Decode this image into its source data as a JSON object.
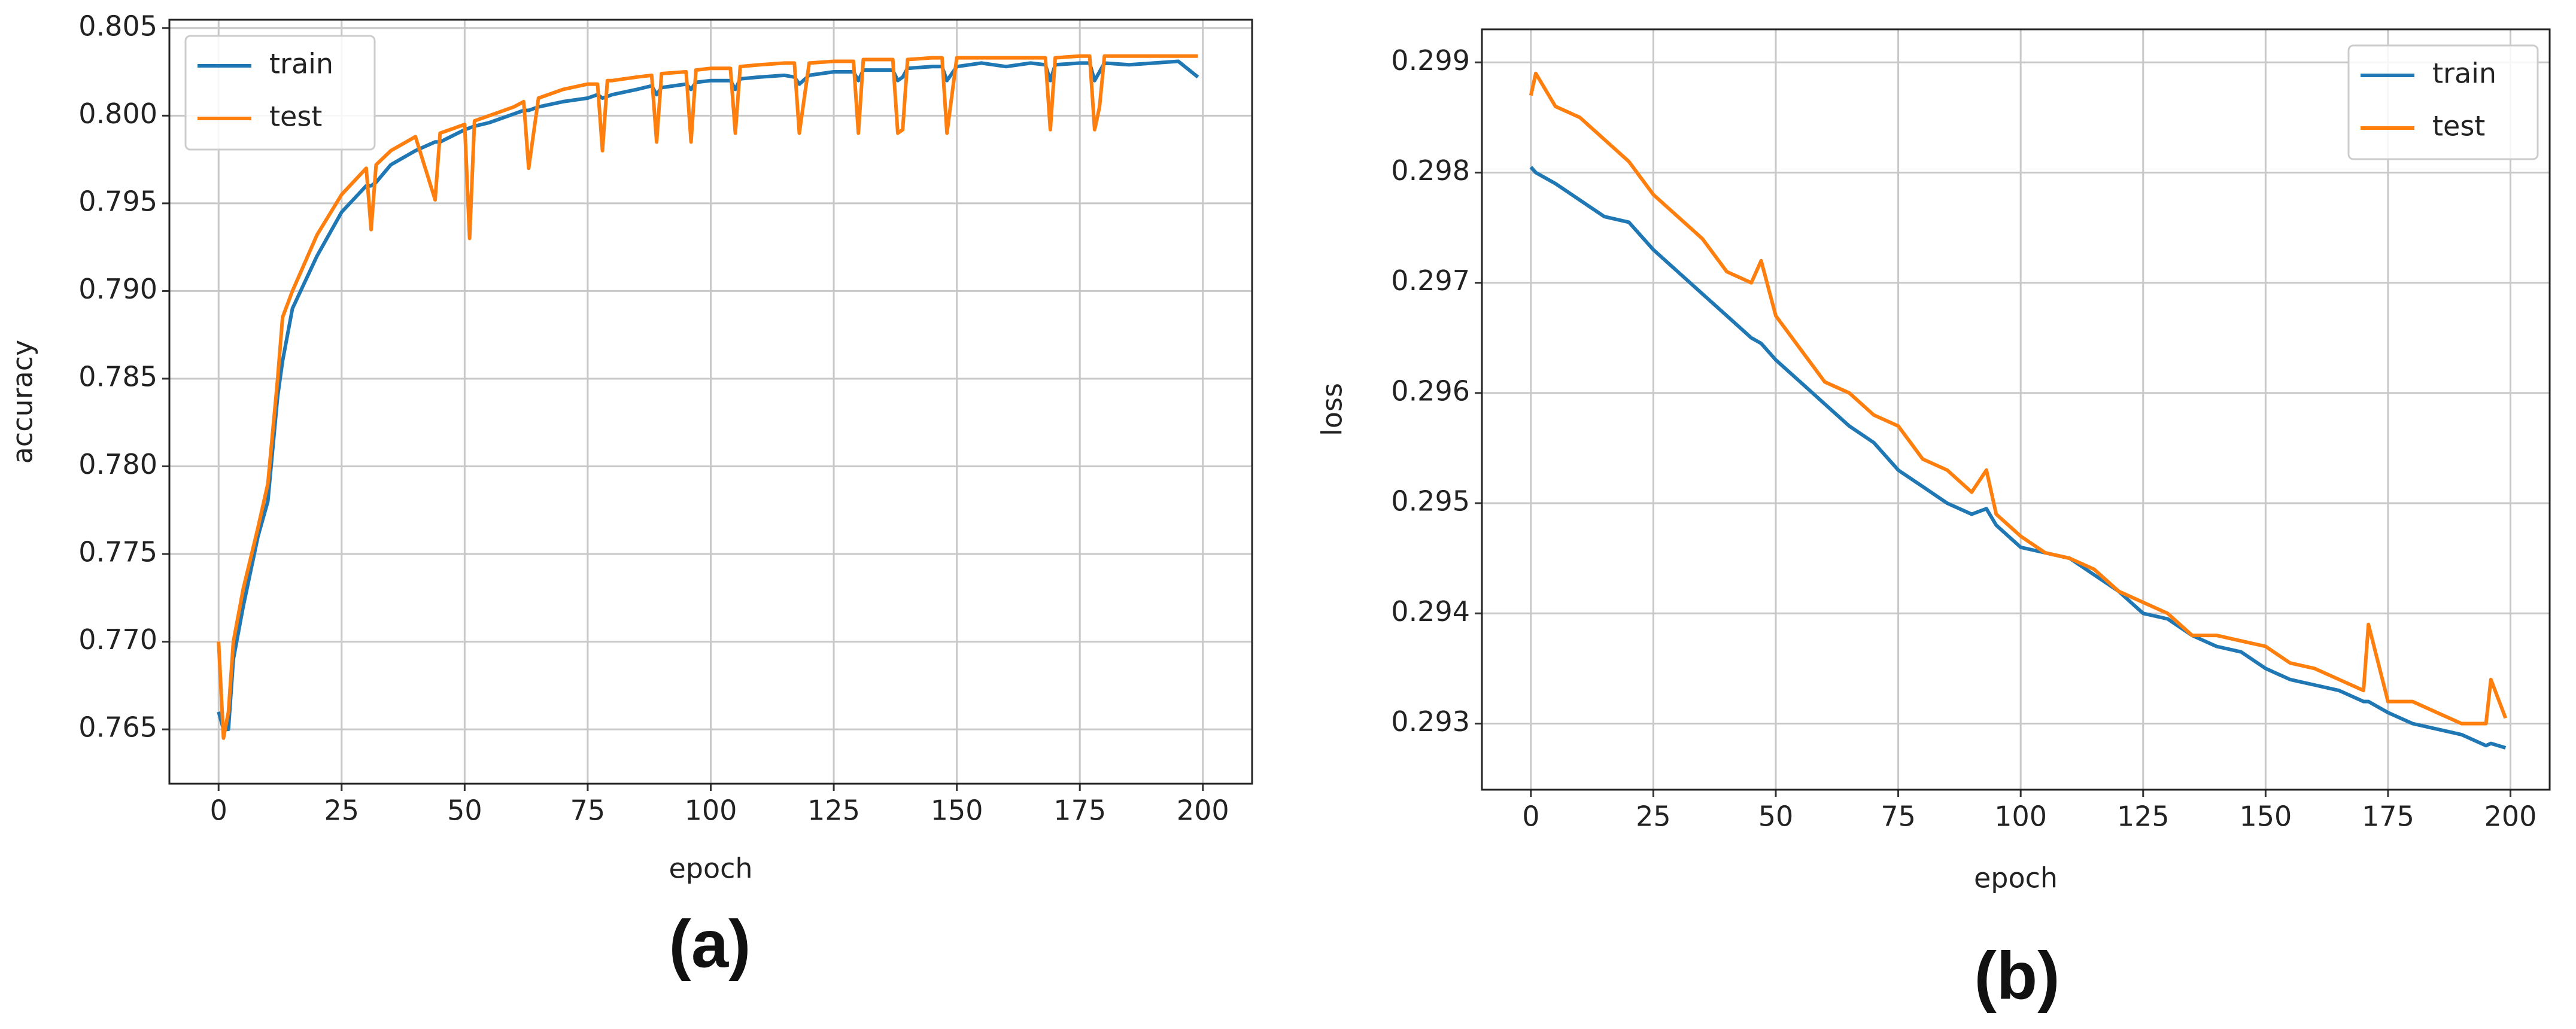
{
  "chart_data": [
    {
      "type": "line",
      "panel_label": "(a)",
      "xlabel": "epoch",
      "ylabel": "accuracy",
      "xlim": [
        -10,
        210
      ],
      "ylim": [
        0.7619,
        0.80547
      ],
      "xticks": [
        0,
        25,
        50,
        75,
        100,
        125,
        150,
        175,
        200
      ],
      "yticks": [
        0.765,
        {
          "value": 0.77,
          "label": "0.770"
        },
        0.775,
        {
          "value": 0.78,
          "label": "0.780"
        },
        0.785,
        {
          "value": 0.79,
          "label": "0.790"
        },
        0.795,
        {
          "value": 0.8,
          "label": "0.800"
        },
        0.805
      ],
      "grid": true,
      "legend": "upper left",
      "x": [
        0,
        1,
        2,
        3,
        5,
        8,
        10,
        12,
        13,
        15,
        20,
        25,
        30,
        31,
        32,
        35,
        40,
        44,
        45,
        50,
        51,
        52,
        55,
        60,
        62,
        63,
        65,
        70,
        75,
        77,
        78,
        79,
        80,
        85,
        88,
        89,
        90,
        95,
        96,
        97,
        100,
        104,
        105,
        106,
        110,
        115,
        117,
        118,
        120,
        125,
        129,
        130,
        131,
        135,
        137,
        138,
        139,
        140,
        145,
        147,
        148,
        150,
        155,
        160,
        165,
        168,
        169,
        170,
        175,
        177,
        178,
        179,
        180,
        185,
        190,
        195,
        199
      ],
      "series": [
        {
          "name": "train",
          "color": "#1f77b4",
          "values": [
            0.766,
            0.765,
            0.765,
            0.769,
            0.772,
            0.776,
            0.778,
            0.784,
            0.786,
            0.789,
            0.792,
            0.7945,
            0.796,
            0.796,
            0.7962,
            0.7972,
            0.798,
            0.7985,
            0.7985,
            0.7992,
            0.7993,
            0.7994,
            0.7996,
            0.8001,
            0.8003,
            0.8003,
            0.8005,
            0.8008,
            0.801,
            0.8012,
            0.801,
            0.8011,
            0.8012,
            0.8015,
            0.8017,
            0.8012,
            0.8016,
            0.8018,
            0.8015,
            0.8019,
            0.802,
            0.802,
            0.8015,
            0.8021,
            0.8022,
            0.8023,
            0.8022,
            0.8018,
            0.8023,
            0.8025,
            0.8025,
            0.802,
            0.8026,
            0.8026,
            0.8026,
            0.802,
            0.8022,
            0.8027,
            0.8028,
            0.8028,
            0.802,
            0.8028,
            0.803,
            0.8028,
            0.803,
            0.8029,
            0.802,
            0.8029,
            0.803,
            0.803,
            0.802,
            0.8025,
            0.803,
            0.8029,
            0.803,
            0.8031,
            0.8022
          ]
        },
        {
          "name": "test",
          "color": "#ff7f0e",
          "values": [
            0.77,
            0.7645,
            0.766,
            0.77,
            0.773,
            0.7765,
            0.779,
            0.785,
            0.7885,
            0.79,
            0.7932,
            0.7955,
            0.797,
            0.7935,
            0.7972,
            0.798,
            0.7988,
            0.7952,
            0.799,
            0.7995,
            0.793,
            0.7997,
            0.8,
            0.8005,
            0.8008,
            0.797,
            0.801,
            0.8015,
            0.8018,
            0.8018,
            0.798,
            0.802,
            0.802,
            0.8022,
            0.8023,
            0.7985,
            0.8024,
            0.8025,
            0.7985,
            0.8026,
            0.8027,
            0.8027,
            0.799,
            0.8028,
            0.8029,
            0.803,
            0.803,
            0.799,
            0.803,
            0.8031,
            0.8031,
            0.799,
            0.8032,
            0.8032,
            0.8032,
            0.799,
            0.7992,
            0.8032,
            0.8033,
            0.8033,
            0.799,
            0.8033,
            0.8033,
            0.8033,
            0.8033,
            0.8033,
            0.7992,
            0.8033,
            0.8034,
            0.8034,
            0.7992,
            0.8005,
            0.8034,
            0.8034,
            0.8034,
            0.8034,
            0.8034
          ]
        }
      ]
    },
    {
      "type": "line",
      "panel_label": "(b)",
      "xlabel": "epoch",
      "ylabel": "loss",
      "xlim": [
        -10,
        208
      ],
      "ylim": [
        0.2924,
        0.2993
      ],
      "xticks": [
        0,
        25,
        50,
        75,
        100,
        125,
        150,
        175,
        200
      ],
      "yticks": [
        0.293,
        0.294,
        0.295,
        0.296,
        0.297,
        0.298,
        0.299
      ],
      "grid": true,
      "legend": "upper right",
      "x": [
        0,
        1,
        5,
        10,
        15,
        20,
        25,
        30,
        35,
        40,
        45,
        47,
        50,
        55,
        60,
        65,
        70,
        75,
        80,
        85,
        90,
        93,
        95,
        100,
        105,
        110,
        115,
        120,
        125,
        130,
        135,
        140,
        145,
        150,
        155,
        160,
        165,
        170,
        171,
        175,
        180,
        185,
        190,
        195,
        196,
        199
      ],
      "series": [
        {
          "name": "train",
          "color": "#1f77b4",
          "values": [
            0.29805,
            0.298,
            0.2979,
            0.29775,
            0.2976,
            0.29755,
            0.2973,
            0.2971,
            0.2969,
            0.2967,
            0.2965,
            0.29645,
            0.2963,
            0.2961,
            0.2959,
            0.2957,
            0.29555,
            0.2953,
            0.29515,
            0.295,
            0.2949,
            0.29495,
            0.2948,
            0.2946,
            0.29455,
            0.2945,
            0.29435,
            0.2942,
            0.294,
            0.29395,
            0.2938,
            0.2937,
            0.29365,
            0.2935,
            0.2934,
            0.29335,
            0.2933,
            0.2932,
            0.2932,
            0.2931,
            0.293,
            0.29295,
            0.2929,
            0.2928,
            0.29282,
            0.29278
          ]
        },
        {
          "name": "test",
          "color": "#ff7f0e",
          "values": [
            0.2987,
            0.2989,
            0.2986,
            0.2985,
            0.2983,
            0.2981,
            0.2978,
            0.2976,
            0.2974,
            0.2971,
            0.297,
            0.2972,
            0.2967,
            0.2964,
            0.2961,
            0.296,
            0.2958,
            0.2957,
            0.2954,
            0.2953,
            0.2951,
            0.2953,
            0.2949,
            0.2947,
            0.29455,
            0.2945,
            0.2944,
            0.2942,
            0.2941,
            0.294,
            0.2938,
            0.2938,
            0.29375,
            0.2937,
            0.29355,
            0.2935,
            0.2934,
            0.2933,
            0.2939,
            0.2932,
            0.2932,
            0.2931,
            0.293,
            0.293,
            0.2934,
            0.29305
          ]
        }
      ]
    }
  ]
}
